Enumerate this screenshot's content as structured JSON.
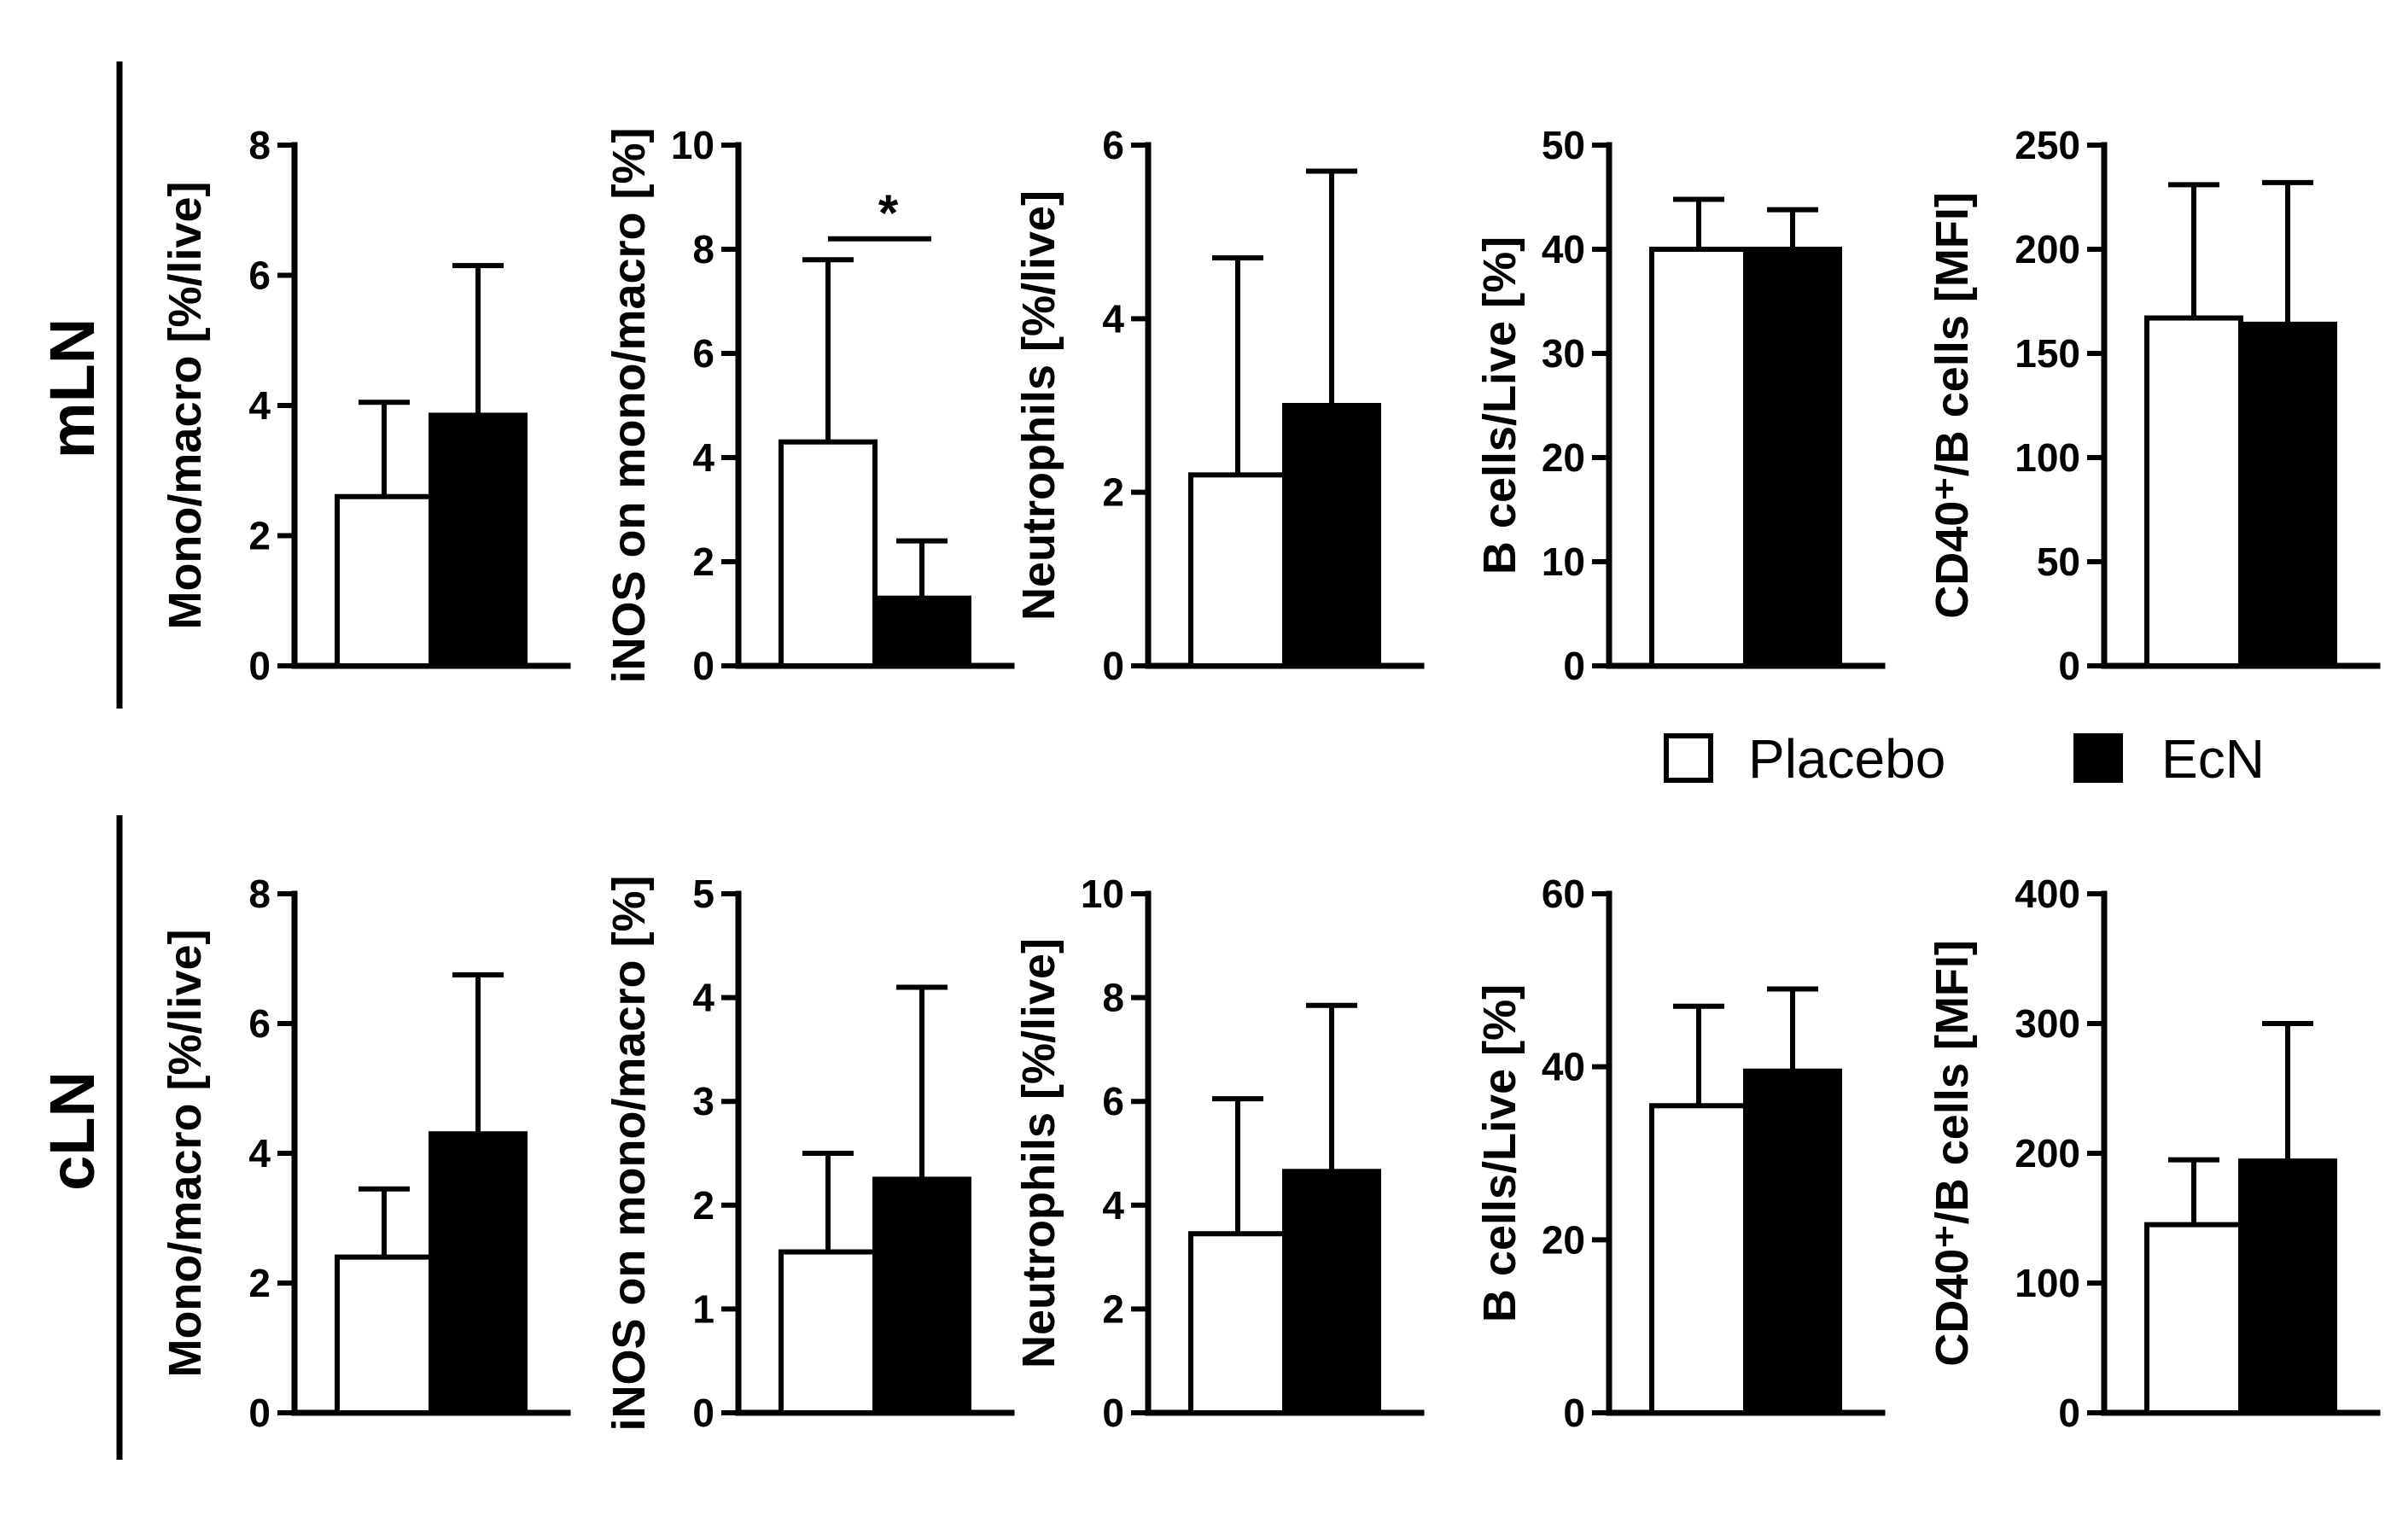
{
  "legend": {
    "items": [
      {
        "label": "Placebo",
        "color": "#ffffff"
      },
      {
        "label": "EcN",
        "color": "#000000"
      }
    ]
  },
  "rows": [
    {
      "label": "mLN"
    },
    {
      "label": "cLN"
    }
  ],
  "chart_data": [
    {
      "type": "bar",
      "row": "mLN",
      "ylabel": "Mono/macro [%/live]",
      "ylim": [
        0,
        8
      ],
      "ticks": [
        0,
        2,
        4,
        6,
        8
      ],
      "categories": [
        "Placebo",
        "EcN"
      ],
      "values": [
        2.6,
        3.85
      ],
      "errors": [
        1.45,
        2.3
      ]
    },
    {
      "type": "bar",
      "row": "mLN",
      "ylabel": "iNOS on mono/macro [%]",
      "ylim": [
        0,
        10
      ],
      "ticks": [
        0,
        2,
        4,
        6,
        8,
        10
      ],
      "categories": [
        "Placebo",
        "EcN"
      ],
      "values": [
        4.3,
        1.3
      ],
      "errors": [
        3.5,
        1.1
      ],
      "significance": "*"
    },
    {
      "type": "bar",
      "row": "mLN",
      "ylabel": "Neutrophils [%/live]",
      "ylim": [
        0,
        6
      ],
      "ticks": [
        0,
        2,
        4,
        6
      ],
      "categories": [
        "Placebo",
        "EcN"
      ],
      "values": [
        2.2,
        3.0
      ],
      "errors": [
        2.5,
        2.7
      ]
    },
    {
      "type": "bar",
      "row": "mLN",
      "ylabel": "B cells/Live [%]",
      "ylim": [
        0,
        50
      ],
      "ticks": [
        0,
        10,
        20,
        30,
        40,
        50
      ],
      "categories": [
        "Placebo",
        "EcN"
      ],
      "values": [
        40,
        40
      ],
      "errors": [
        4.8,
        3.8
      ]
    },
    {
      "type": "bar",
      "row": "mLN",
      "ylabel": "CD40⁺/B cells [MFI]",
      "ylim": [
        0,
        250
      ],
      "ticks": [
        0,
        50,
        100,
        150,
        200,
        250
      ],
      "categories": [
        "Placebo",
        "EcN"
      ],
      "values": [
        167,
        164
      ],
      "errors": [
        64,
        68
      ]
    },
    {
      "type": "bar",
      "row": "cLN",
      "ylabel": "Mono/macro [%/live]",
      "ylim": [
        0,
        8
      ],
      "ticks": [
        0,
        2,
        4,
        6,
        8
      ],
      "categories": [
        "Placebo",
        "EcN"
      ],
      "values": [
        2.4,
        4.3
      ],
      "errors": [
        1.05,
        2.45
      ]
    },
    {
      "type": "bar",
      "row": "cLN",
      "ylabel": "iNOS on mono/macro [%]",
      "ylim": [
        0,
        5
      ],
      "ticks": [
        0,
        1,
        2,
        3,
        4,
        5
      ],
      "categories": [
        "Placebo",
        "EcN"
      ],
      "values": [
        1.55,
        2.25
      ],
      "errors": [
        0.95,
        1.85
      ]
    },
    {
      "type": "bar",
      "row": "cLN",
      "ylabel": "Neutrophils [%/live]",
      "ylim": [
        0,
        10
      ],
      "ticks": [
        0,
        2,
        4,
        6,
        8,
        10
      ],
      "categories": [
        "Placebo",
        "EcN"
      ],
      "values": [
        3.45,
        4.65
      ],
      "errors": [
        2.6,
        3.2
      ]
    },
    {
      "type": "bar",
      "row": "cLN",
      "ylabel": "B cells/Live [%]",
      "ylim": [
        0,
        60
      ],
      "ticks": [
        0,
        20,
        40,
        60
      ],
      "categories": [
        "Placebo",
        "EcN"
      ],
      "values": [
        35.5,
        39.5
      ],
      "errors": [
        11.5,
        9.5
      ]
    },
    {
      "type": "bar",
      "row": "cLN",
      "ylabel": "CD40⁺/B cells [MFI]",
      "ylim": [
        0,
        400
      ],
      "ticks": [
        0,
        100,
        200,
        300,
        400
      ],
      "categories": [
        "Placebo",
        "EcN"
      ],
      "values": [
        145,
        194
      ],
      "errors": [
        50,
        106
      ]
    }
  ]
}
